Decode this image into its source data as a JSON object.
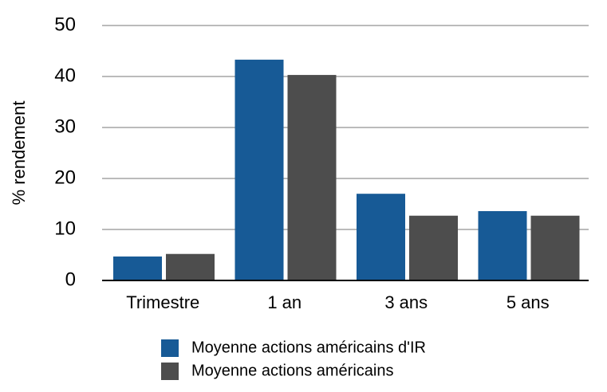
{
  "chart_data": {
    "type": "bar",
    "y_label": "% rendement",
    "categories": [
      "Trimestre",
      "1 an",
      "3 ans",
      "5 ans"
    ],
    "series": [
      {
        "name": "Moyenne actions américains d'IR",
        "color": "#175a96",
        "values": [
          4.7,
          43.3,
          17.0,
          13.6
        ]
      },
      {
        "name": "Moyenne actions américains",
        "color": "#4d4d4d",
        "values": [
          5.2,
          40.3,
          12.7,
          12.7
        ]
      }
    ],
    "ylim": [
      0,
      50
    ],
    "yticks": [
      0,
      10,
      20,
      30,
      40,
      50
    ],
    "grid": true
  }
}
